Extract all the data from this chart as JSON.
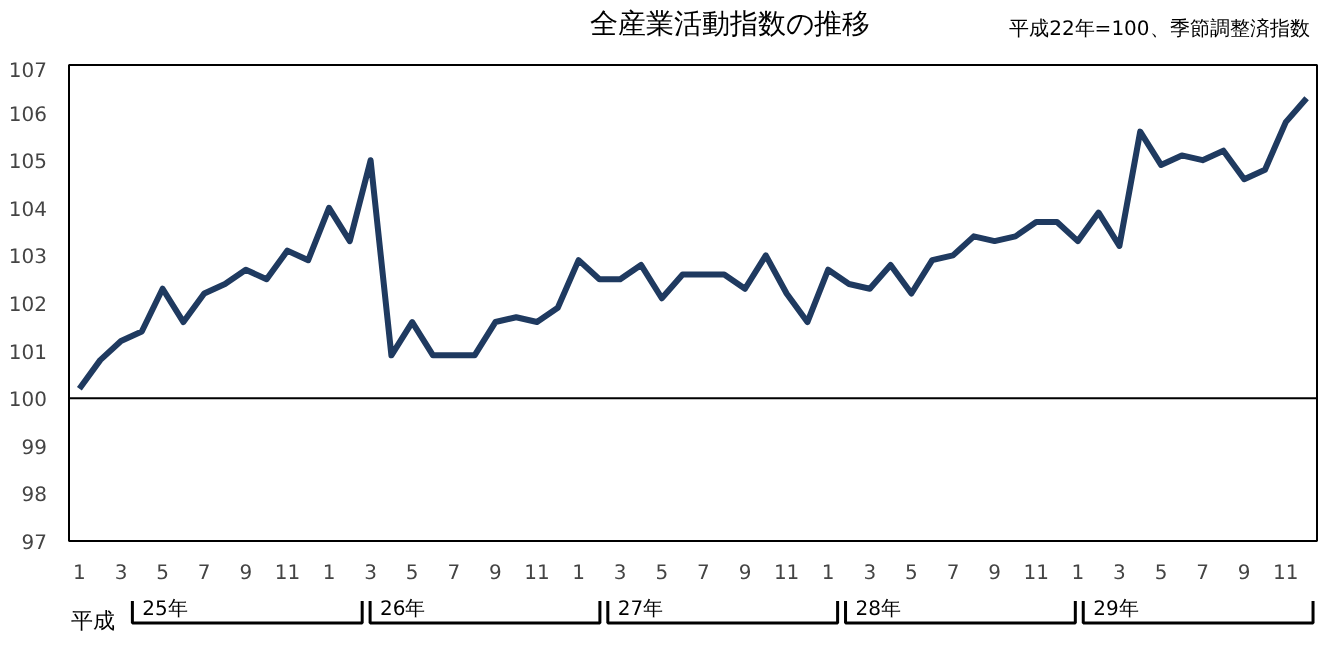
{
  "chart_data": {
    "type": "line",
    "title": "全産業活動指数の推移",
    "subtitle": "平成22年=100、季節調整済指数",
    "categories": [
      "1",
      null,
      "3",
      null,
      "5",
      null,
      "7",
      null,
      "9",
      null,
      "11",
      null,
      "1",
      null,
      "3",
      null,
      "5",
      null,
      "7",
      null,
      "9",
      null,
      "11",
      null,
      "1",
      null,
      "3",
      null,
      "5",
      null,
      "7",
      null,
      "9",
      null,
      "11",
      null,
      "1",
      null,
      "3",
      null,
      "5",
      null,
      "7",
      null,
      "9",
      null,
      "11",
      null,
      "1",
      null,
      "3",
      null,
      "5",
      null,
      "7",
      null,
      "9",
      null,
      "11",
      null
    ],
    "series": [
      {
        "color": "#1f3a60",
        "values": [
          100.2,
          100.8,
          101.2,
          101.4,
          102.3,
          101.6,
          102.2,
          102.4,
          102.7,
          102.5,
          103.1,
          102.9,
          104.0,
          103.3,
          105.0,
          100.9,
          101.6,
          100.9,
          100.9,
          100.9,
          101.6,
          101.7,
          101.6,
          101.9,
          102.9,
          102.5,
          102.5,
          102.8,
          102.1,
          102.6,
          102.6,
          102.6,
          102.3,
          103.0,
          102.2,
          101.6,
          102.7,
          102.4,
          102.3,
          102.8,
          102.2,
          102.9,
          103.0,
          103.4,
          103.3,
          103.4,
          103.7,
          103.7,
          103.3,
          103.9,
          103.2,
          105.6,
          104.9,
          105.1,
          105.0,
          105.2,
          104.6,
          104.8,
          105.8,
          106.3
        ]
      }
    ],
    "ylim": [
      97,
      107
    ],
    "yticks": [
      97,
      98,
      99,
      100,
      101,
      102,
      103,
      104,
      105,
      106,
      107
    ],
    "ref_lines": [
      {
        "axis": "y",
        "value": 100,
        "color": "#000000"
      }
    ],
    "grid": false,
    "marker": "none",
    "line_style": "solid",
    "annotations": [
      "平成",
      "25年",
      "26年",
      "27年",
      "28年",
      "29年"
    ]
  }
}
